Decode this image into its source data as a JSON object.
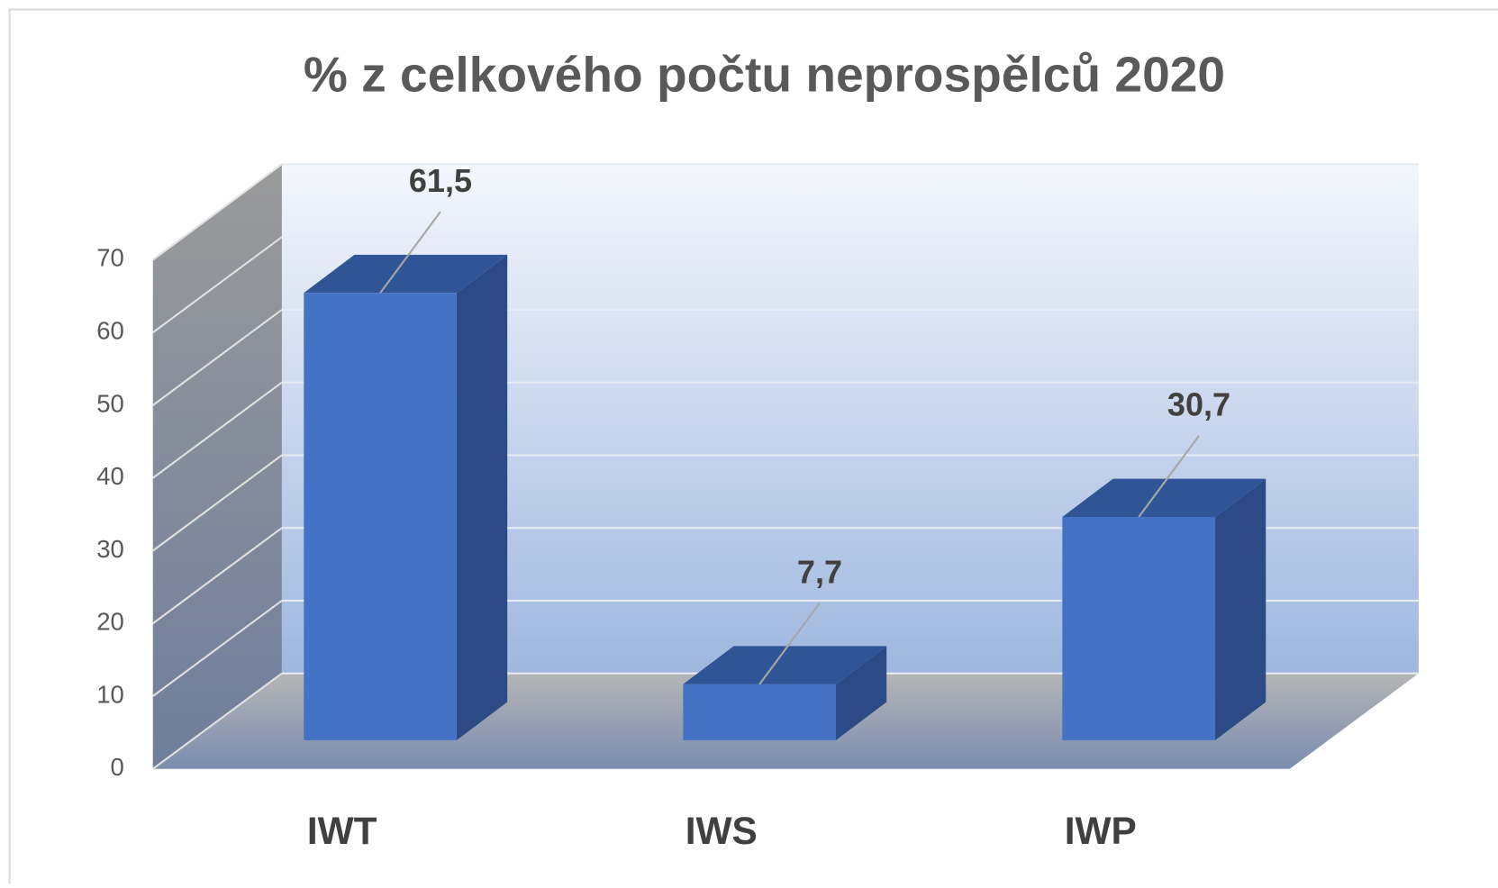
{
  "chart_data": {
    "type": "bar3d",
    "title": "% z celkového počtu neprospělců 2020",
    "categories": [
      "IWT",
      "IWS",
      "IWP"
    ],
    "values": [
      61.5,
      7.7,
      30.7
    ],
    "value_labels": [
      "61,5",
      "7,7",
      "30,7"
    ],
    "color": "#4472c4",
    "ylim": [
      0,
      70
    ],
    "yticks": [
      0,
      10,
      20,
      30,
      40,
      50,
      60,
      70
    ],
    "grid": true
  }
}
